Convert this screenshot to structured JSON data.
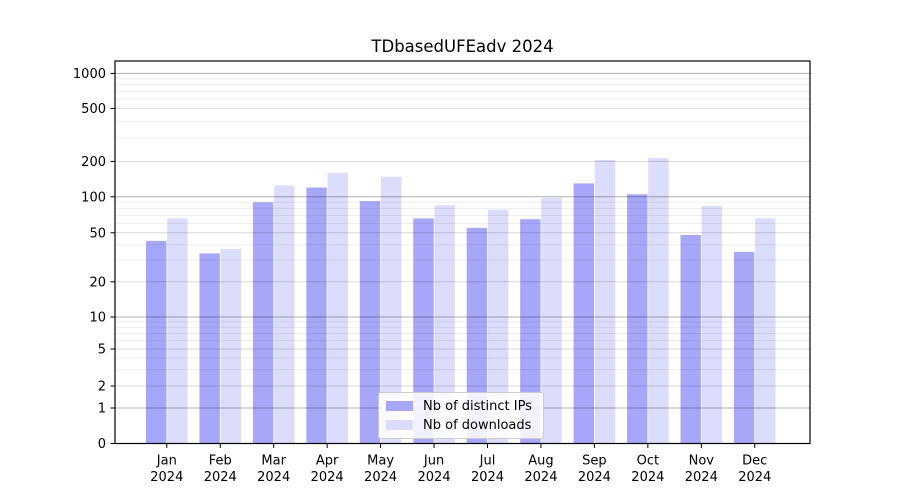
{
  "title": "TDbasedUFEadv 2024",
  "chart_data": {
    "type": "bar",
    "title": "TDbasedUFEadv 2024",
    "categories": [
      "Jan 2024",
      "Feb 2024",
      "Mar 2024",
      "Apr 2024",
      "May 2024",
      "Jun 2024",
      "Jul 2024",
      "Aug 2024",
      "Sep 2024",
      "Oct 2024",
      "Nov 2024",
      "Dec 2024"
    ],
    "x_tick_line1": [
      "Jan",
      "Feb",
      "Mar",
      "Apr",
      "May",
      "Jun",
      "Jul",
      "Aug",
      "Sep",
      "Oct",
      "Nov",
      "Dec"
    ],
    "x_tick_line2": "2024",
    "series": [
      {
        "name": "Nb of distinct IPs",
        "color": "#a7a7f9",
        "values": [
          43,
          34,
          90,
          120,
          92,
          66,
          55,
          65,
          130,
          105,
          48,
          35
        ]
      },
      {
        "name": "Nb of downloads",
        "color": "#dcdcfb",
        "values": [
          66,
          37,
          125,
          160,
          148,
          85,
          78,
          98,
          205,
          212,
          84,
          66
        ]
      }
    ],
    "yscale": "log",
    "ylim": [
      0,
      1000
    ],
    "yticks": [
      0,
      1,
      2,
      5,
      10,
      20,
      50,
      100,
      200,
      500,
      1000
    ],
    "grid": true,
    "legend_position": "lower center",
    "colors": {
      "grid_major": "#b0b0b0",
      "grid_sub": "#d9d9d9",
      "grid_minor": "#ededed",
      "axis": "#000000"
    }
  }
}
